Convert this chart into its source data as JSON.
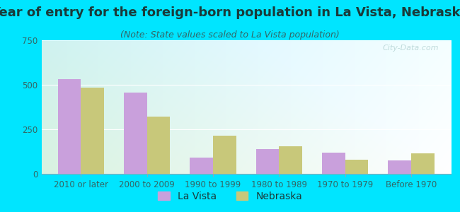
{
  "title": "Year of entry for the foreign-born population in La Vista, Nebraska",
  "subtitle": "(Note: State values scaled to La Vista population)",
  "categories": [
    "2010 or later",
    "2000 to 2009",
    "1990 to 1999",
    "1980 to 1989",
    "1970 to 1979",
    "Before 1970"
  ],
  "lavista_values": [
    530,
    455,
    90,
    140,
    120,
    75
  ],
  "nebraska_values": [
    485,
    320,
    215,
    155,
    80,
    115
  ],
  "lavista_color": "#c9a0dc",
  "nebraska_color": "#c8c87a",
  "background_outer": "#00e5ff",
  "ylim": [
    0,
    750
  ],
  "yticks": [
    0,
    250,
    500,
    750
  ],
  "bar_width": 0.35,
  "title_fontsize": 13,
  "subtitle_fontsize": 9,
  "tick_fontsize": 8.5,
  "legend_fontsize": 10
}
